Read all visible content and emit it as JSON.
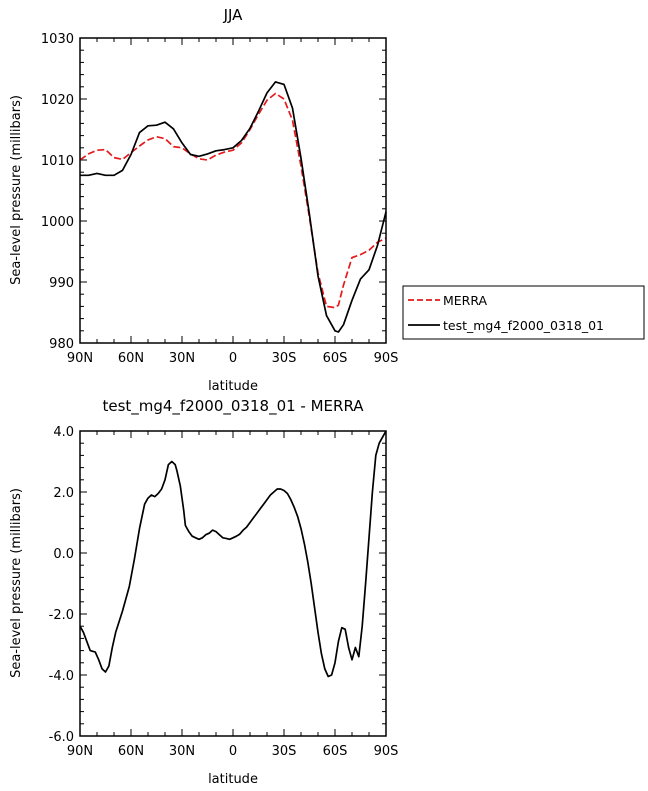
{
  "chart_data": [
    {
      "type": "line",
      "title": "JJA",
      "xlabel": "latitude",
      "ylabel": "Sea-level pressure (millibars)",
      "xlim": [
        -90,
        90
      ],
      "ylim": [
        980,
        1030
      ],
      "x_tick_values": [
        -90,
        -60,
        -30,
        0,
        30,
        60,
        90
      ],
      "x_tick_labels": [
        "90N",
        "60N",
        "30N",
        "0",
        "30S",
        "60S",
        "90S"
      ],
      "y_tick_values": [
        980,
        990,
        1000,
        1010,
        1020,
        1030
      ],
      "y_tick_labels": [
        "980",
        "990",
        "1000",
        "1010",
        "1020",
        "1030"
      ],
      "legend_position": "right",
      "series": [
        {
          "name": "MERRA",
          "color": "#e41a1c",
          "dash": "dashed",
          "x": [
            -90,
            -85,
            -80,
            -75,
            -70,
            -65,
            -60,
            -55,
            -50,
            -45,
            -40,
            -35,
            -30,
            -25,
            -20,
            -15,
            -10,
            -5,
            0,
            5,
            10,
            15,
            20,
            25,
            30,
            35,
            40,
            45,
            50,
            55,
            60,
            62,
            65,
            70,
            75,
            80,
            85,
            90
          ],
          "y": [
            1010,
            1011,
            1011.6,
            1011.7,
            1010.4,
            1010.1,
            1011.2,
            1012.3,
            1013.3,
            1013.8,
            1013.5,
            1012.2,
            1012,
            1011,
            1010.2,
            1010,
            1010.8,
            1011.3,
            1011.6,
            1012.8,
            1015,
            1017.5,
            1019.8,
            1020.9,
            1020,
            1016.5,
            1009,
            1000.5,
            991.5,
            986,
            985.8,
            986.2,
            989.5,
            994,
            994.5,
            995.2,
            996.5,
            997.2
          ]
        },
        {
          "name": "test_mg4_f2000_0318_01",
          "color": "#000000",
          "dash": "solid",
          "x": [
            -90,
            -85,
            -80,
            -75,
            -70,
            -65,
            -60,
            -55,
            -50,
            -45,
            -40,
            -35,
            -30,
            -25,
            -20,
            -15,
            -10,
            -5,
            0,
            5,
            10,
            15,
            20,
            25,
            30,
            35,
            40,
            45,
            50,
            55,
            60,
            62,
            65,
            70,
            75,
            80,
            85,
            90
          ],
          "y": [
            1007.5,
            1007.5,
            1007.8,
            1007.5,
            1007.5,
            1008.3,
            1010.9,
            1014.5,
            1015.6,
            1015.7,
            1016.2,
            1015.1,
            1012.8,
            1010.9,
            1010.6,
            1011,
            1011.5,
            1011.7,
            1012,
            1013.2,
            1015.2,
            1018,
            1021,
            1022.8,
            1022.4,
            1018.5,
            1010.3,
            1001,
            991,
            984.5,
            982,
            981.8,
            983,
            987,
            990.5,
            992,
            996,
            1001.5
          ]
        }
      ]
    },
    {
      "type": "line",
      "title": "test_mg4_f2000_0318_01 - MERRA",
      "xlabel": "latitude",
      "ylabel": "Sea-level pressure (millibars)",
      "xlim": [
        -90,
        90
      ],
      "ylim": [
        -6,
        4
      ],
      "x_tick_values": [
        -90,
        -60,
        -30,
        0,
        30,
        60,
        90
      ],
      "x_tick_labels": [
        "90N",
        "60N",
        "30N",
        "0",
        "30S",
        "60S",
        "90S"
      ],
      "y_tick_values": [
        -6,
        -4,
        -2,
        0,
        2,
        4
      ],
      "y_tick_labels": [
        "-6.0",
        "-4.0",
        "-2.0",
        "0.0",
        "2.0",
        "4.0"
      ],
      "series": [
        {
          "color": "#000000",
          "dash": "solid",
          "x": [
            -90,
            -88,
            -84,
            -81,
            -79,
            -77,
            -75,
            -73,
            -71,
            -69,
            -65,
            -61,
            -58,
            -55,
            -52,
            -50,
            -48,
            -46,
            -44,
            -42,
            -40,
            -38,
            -36,
            -34,
            -33,
            -31,
            -29,
            -28,
            -26,
            -24,
            -22,
            -20,
            -18,
            -16,
            -14,
            -12,
            -10,
            -8,
            -6,
            -4,
            -2,
            0,
            2,
            4,
            6,
            8,
            10,
            12,
            14,
            16,
            18,
            20,
            22,
            24,
            26,
            28,
            30,
            32,
            34,
            36,
            38,
            40,
            42,
            44,
            46,
            48,
            50,
            52,
            54,
            56,
            58,
            60,
            62,
            64,
            66,
            68,
            70,
            71,
            72,
            74,
            76,
            78,
            80,
            82,
            84,
            86,
            88,
            89,
            90
          ],
          "y": [
            -2.4,
            -2.6,
            -3.2,
            -3.25,
            -3.5,
            -3.8,
            -3.9,
            -3.7,
            -3.1,
            -2.6,
            -1.9,
            -1.1,
            -0.2,
            0.8,
            1.6,
            1.8,
            1.9,
            1.85,
            1.95,
            2.1,
            2.4,
            2.9,
            3,
            2.9,
            2.7,
            2.2,
            1.4,
            0.9,
            0.7,
            0.55,
            0.5,
            0.45,
            0.5,
            0.6,
            0.65,
            0.75,
            0.7,
            0.6,
            0.5,
            0.48,
            0.45,
            0.5,
            0.55,
            0.62,
            0.75,
            0.85,
            1,
            1.15,
            1.3,
            1.45,
            1.6,
            1.75,
            1.9,
            2,
            2.1,
            2.1,
            2.05,
            1.95,
            1.75,
            1.5,
            1.2,
            0.8,
            0.3,
            -0.3,
            -1,
            -1.8,
            -2.6,
            -3.3,
            -3.8,
            -4.05,
            -4,
            -3.6,
            -2.9,
            -2.45,
            -2.5,
            -3.1,
            -3.5,
            -3.3,
            -3.1,
            -3.4,
            -2.4,
            -1,
            0.5,
            2,
            3.2,
            3.6,
            3.8,
            3.9,
            4
          ]
        }
      ]
    }
  ]
}
